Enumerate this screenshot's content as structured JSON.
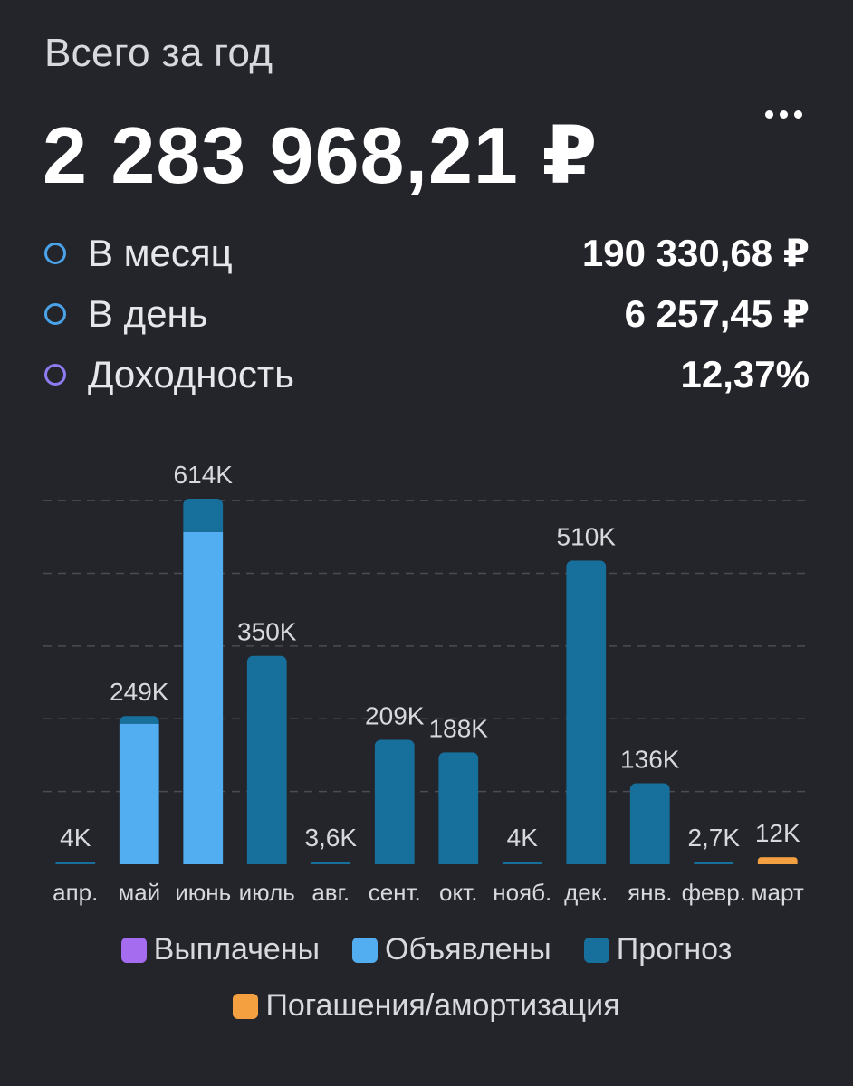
{
  "header": {
    "subtitle": "Всего за год",
    "total": "2 283 968,21 ₽"
  },
  "stats": [
    {
      "label": "В месяц",
      "value": "190 330,68 ₽",
      "ring_color": "#4aa3e8"
    },
    {
      "label": "В день",
      "value": "6 257,45 ₽",
      "ring_color": "#4aa3e8"
    },
    {
      "label": "Доходность",
      "value": "12,37%",
      "ring_color": "#8b7cf2"
    }
  ],
  "legend": [
    {
      "label": "Выплачены",
      "color": "#a66cf0"
    },
    {
      "label": "Объявлены",
      "color": "#52aef0"
    },
    {
      "label": "Прогноз",
      "color": "#176f9c"
    },
    {
      "label": "Погашения/амортизация",
      "color": "#f5a040"
    }
  ],
  "chart_data": {
    "type": "bar",
    "stacked": true,
    "title": "",
    "xlabel": "",
    "ylabel": "",
    "ylim": [
      0,
      620000
    ],
    "grid": true,
    "categories": [
      "апр.",
      "май",
      "июнь",
      "июль",
      "авг.",
      "сент.",
      "окт.",
      "нояб.",
      "дек.",
      "янв.",
      "февр.",
      "март"
    ],
    "data_labels": [
      "4K",
      "249K",
      "614K",
      "350K",
      "3,6K",
      "209K",
      "188K",
      "4K",
      "510K",
      "136K",
      "2,7K",
      "12K"
    ],
    "series": [
      {
        "name": "Выплачены",
        "color": "#a66cf0",
        "values": [
          0,
          0,
          0,
          0,
          0,
          0,
          0,
          0,
          0,
          0,
          0,
          0
        ]
      },
      {
        "name": "Объявлены",
        "color": "#52aef0",
        "values": [
          0,
          236000,
          558000,
          0,
          0,
          0,
          0,
          0,
          0,
          0,
          0,
          0
        ]
      },
      {
        "name": "Прогноз",
        "color": "#176f9c",
        "values": [
          4000,
          13000,
          56000,
          350000,
          3600,
          209000,
          188000,
          4000,
          510000,
          136000,
          2700,
          0
        ]
      },
      {
        "name": "Погашения/амортизация",
        "color": "#f5a040",
        "values": [
          0,
          0,
          0,
          0,
          0,
          0,
          0,
          0,
          0,
          0,
          0,
          12000
        ]
      }
    ]
  }
}
